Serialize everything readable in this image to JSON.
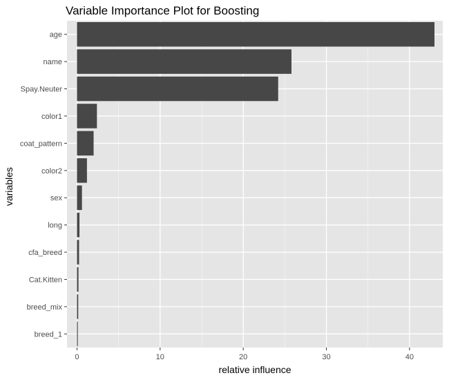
{
  "chart_data": {
    "type": "bar",
    "orientation": "horizontal",
    "title": "Variable Importance Plot for Boosting",
    "xlabel": "relative influence",
    "ylabel": "variables",
    "categories": [
      "age",
      "name",
      "Spay.Neuter",
      "color1",
      "coat_pattern",
      "color2",
      "sex",
      "long",
      "cfa_breed",
      "Cat.Kitten",
      "breed_mix",
      "breed_1"
    ],
    "values": [
      43.0,
      25.8,
      24.2,
      2.4,
      2.0,
      1.2,
      0.6,
      0.3,
      0.25,
      0.18,
      0.15,
      0.1
    ],
    "xlim": [
      -1.2,
      44.0
    ],
    "xticks": [
      0,
      10,
      20,
      30,
      40
    ],
    "grid": true,
    "colors": {
      "bar": "#474747",
      "panel": "#e5e5e5",
      "grid_major": "#ffffff",
      "grid_minor": "#f2f2f2"
    }
  }
}
